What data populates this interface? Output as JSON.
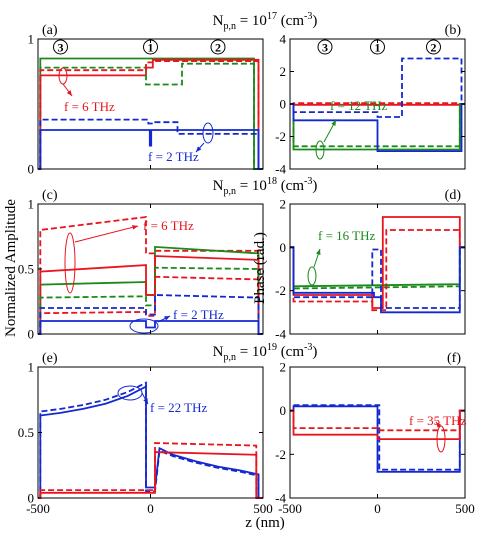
{
  "ylabels": {
    "left": "Normalized Amplitude",
    "right": "Phase (rad.)"
  },
  "xlabel": "z (nm)",
  "row_titles": [
    {
      "base": "N",
      "sub": "p,n",
      "mid": " = 10",
      "exp": "17",
      "unit": " (cm",
      "unit_exp": "-3",
      "close": ")"
    },
    {
      "base": "N",
      "sub": "p,n",
      "mid": " = 10",
      "exp": "18",
      "unit": " (cm",
      "unit_exp": "-3",
      "close": ")"
    },
    {
      "base": "N",
      "sub": "p,n",
      "mid": " = 10",
      "exp": "19",
      "unit": " (cm",
      "unit_exp": "-3",
      "close": ")"
    }
  ],
  "colors": {
    "green": "#1a8a1a",
    "red": "#e8141e",
    "blue": "#1428d2"
  },
  "chart_data": [
    {
      "id": "a",
      "label": "(a)",
      "type": "line",
      "xlim": [
        -500,
        500
      ],
      "ylim": [
        0,
        1
      ],
      "yticks": [
        "0",
        "1"
      ],
      "xticks": [],
      "region_marks": [
        {
          "x": -400,
          "text": "3"
        },
        {
          "x": 0,
          "text": "1"
        },
        {
          "x": 300,
          "text": "2"
        }
      ],
      "annotations": [
        {
          "text": "f = 6 THz",
          "color": "red"
        },
        {
          "text": "f = 2 THz",
          "color": "blue"
        }
      ],
      "series": [
        {
          "color": "green",
          "dash": false,
          "x": [
            -500,
            -490,
            -490,
            460,
            460,
            500
          ],
          "y": [
            0,
            0,
            0.85,
            0.85,
            0,
            0
          ]
        },
        {
          "color": "red",
          "dash": false,
          "x": [
            -500,
            -490,
            -490,
            -20,
            -20,
            10,
            10,
            480,
            480,
            500
          ],
          "y": [
            0,
            0,
            0.72,
            0.72,
            0.78,
            0.78,
            0.84,
            0.84,
            0,
            0
          ]
        },
        {
          "color": "green",
          "dash": true,
          "x": [
            -500,
            -490,
            -490,
            -20,
            -20,
            140,
            140,
            460,
            460,
            500
          ],
          "y": [
            0,
            0,
            0.78,
            0.78,
            0.65,
            0.65,
            0.81,
            0.81,
            0,
            0
          ]
        },
        {
          "color": "red",
          "dash": true,
          "x": [
            -500,
            -490,
            -490,
            -20,
            -20,
            10,
            10,
            480,
            480,
            500
          ],
          "y": [
            0,
            0,
            0.76,
            0.76,
            0.82,
            0.82,
            0.83,
            0.83,
            0,
            0
          ]
        },
        {
          "color": "blue",
          "dash": false,
          "x": [
            -500,
            -490,
            -490,
            -3,
            -3,
            3,
            3,
            480,
            480,
            500
          ],
          "y": [
            0,
            0,
            0.3,
            0.3,
            0.18,
            0.18,
            0.3,
            0.3,
            0,
            0
          ]
        },
        {
          "color": "blue",
          "dash": true,
          "x": [
            -500,
            -490,
            -490,
            -10,
            -10,
            10,
            10,
            120,
            120,
            480,
            480,
            500
          ],
          "y": [
            0,
            0,
            0.38,
            0.38,
            0.35,
            0.35,
            0.36,
            0.36,
            0.27,
            0.27,
            0,
            0
          ]
        }
      ]
    },
    {
      "id": "b",
      "label": "(b)",
      "type": "line",
      "xlim": [
        -500,
        500
      ],
      "ylim": [
        -4,
        4
      ],
      "yticks": [
        "-4",
        "-2",
        "0",
        "2",
        "4"
      ],
      "xticks": [],
      "region_marks": [
        {
          "x": -300,
          "text": "3"
        },
        {
          "x": 0,
          "text": "1"
        },
        {
          "x": 320,
          "text": "2"
        }
      ],
      "annotations": [
        {
          "text": "f = 12 THz",
          "color": "green"
        }
      ],
      "series": [
        {
          "color": "red",
          "dash": false,
          "x": [
            -500,
            -480,
            -480,
            470,
            470,
            500
          ],
          "y": [
            0,
            0,
            -0.05,
            -0.05,
            0,
            0
          ]
        },
        {
          "color": "red",
          "dash": true,
          "x": [
            -500,
            -480,
            -480,
            470,
            470,
            500
          ],
          "y": [
            0,
            0,
            0.05,
            0.05,
            0,
            0
          ]
        },
        {
          "color": "green",
          "dash": false,
          "x": [
            -500,
            -480,
            -480,
            470,
            470,
            500
          ],
          "y": [
            0,
            0,
            -2.8,
            -2.8,
            0,
            0
          ]
        },
        {
          "color": "green",
          "dash": true,
          "x": [
            -500,
            -480,
            -480,
            470,
            470,
            500
          ],
          "y": [
            0,
            0,
            -2.6,
            -2.6,
            0,
            0
          ]
        },
        {
          "color": "blue",
          "dash": false,
          "x": [
            -500,
            -480,
            -480,
            0,
            0,
            480,
            480,
            500
          ],
          "y": [
            0,
            0,
            -1.0,
            -1.0,
            -2.9,
            -2.9,
            0,
            0
          ]
        },
        {
          "color": "blue",
          "dash": true,
          "x": [
            -500,
            -480,
            -480,
            0,
            0,
            140,
            140,
            480,
            480,
            500
          ],
          "y": [
            0,
            0,
            -0.5,
            -0.5,
            -0.8,
            -0.8,
            2.8,
            2.8,
            0,
            0
          ]
        }
      ]
    },
    {
      "id": "c",
      "label": "(c)",
      "type": "line",
      "xlim": [
        -500,
        500
      ],
      "ylim": [
        0,
        1
      ],
      "yticks": [
        "0",
        "0.5",
        "1"
      ],
      "xticks": [],
      "region_marks": [],
      "annotations": [
        {
          "text": "f = 6 THz",
          "color": "red"
        },
        {
          "text": "f = 2 THz",
          "color": "blue"
        }
      ],
      "series": [
        {
          "color": "red",
          "dash": true,
          "x": [
            -500,
            -490,
            -490,
            -20,
            -20,
            20,
            20,
            480,
            480,
            500
          ],
          "y": [
            0,
            0,
            0.8,
            0.9,
            0.62,
            0.62,
            0.64,
            0.64,
            0,
            0
          ]
        },
        {
          "color": "green",
          "dash": false,
          "x": [
            -500,
            -490,
            -490,
            -20,
            -20,
            20,
            20,
            480,
            480,
            500
          ],
          "y": [
            0,
            0,
            0.38,
            0.4,
            0.3,
            0.3,
            0.67,
            0.62,
            0,
            0
          ]
        },
        {
          "color": "red",
          "dash": false,
          "x": [
            -500,
            -490,
            -490,
            -20,
            -20,
            20,
            20,
            480,
            480,
            500
          ],
          "y": [
            0,
            0,
            0.48,
            0.53,
            0.3,
            0.3,
            0.6,
            0.57,
            0,
            0
          ]
        },
        {
          "color": "green",
          "dash": true,
          "x": [
            -500,
            -490,
            -490,
            -20,
            -20,
            20,
            20,
            480,
            480,
            500
          ],
          "y": [
            0,
            0,
            0.28,
            0.29,
            0.22,
            0.22,
            0.51,
            0.5,
            0,
            0
          ]
        },
        {
          "color": "red",
          "dash": true,
          "x": [
            -500,
            -490,
            -490,
            -20,
            -20,
            20,
            20,
            480,
            480,
            500
          ],
          "y": [
            0,
            0,
            0.16,
            0.17,
            0.14,
            0.14,
            0.44,
            0.42,
            0,
            0
          ]
        },
        {
          "color": "blue",
          "dash": true,
          "x": [
            -500,
            -490,
            -490,
            -20,
            -20,
            20,
            20,
            480,
            480,
            500
          ],
          "y": [
            0,
            0,
            0.2,
            0.2,
            0.15,
            0.15,
            0.3,
            0.28,
            0,
            0
          ]
        },
        {
          "color": "blue",
          "dash": false,
          "x": [
            -500,
            -490,
            -490,
            -20,
            -20,
            20,
            20,
            480,
            480,
            500
          ],
          "y": [
            0,
            0,
            0.1,
            0.1,
            0.05,
            0.05,
            0.1,
            0.1,
            0,
            0
          ]
        }
      ]
    },
    {
      "id": "d",
      "label": "(d)",
      "type": "line",
      "xlim": [
        -500,
        500
      ],
      "ylim": [
        -4,
        2
      ],
      "yticks": [
        "-4",
        "-2",
        "0",
        "2"
      ],
      "xticks": [],
      "region_marks": [],
      "annotations": [
        {
          "text": "f = 16 THz",
          "color": "green"
        }
      ],
      "series": [
        {
          "color": "green",
          "dash": false,
          "x": [
            -500,
            -480,
            -480,
            470,
            470,
            500
          ],
          "y": [
            0,
            0,
            -1.8,
            -1.7,
            0,
            0
          ]
        },
        {
          "color": "green",
          "dash": true,
          "x": [
            -500,
            -480,
            -480,
            470,
            470,
            500
          ],
          "y": [
            0,
            0,
            -1.9,
            -1.8,
            0,
            0
          ]
        },
        {
          "color": "red",
          "dash": false,
          "x": [
            -500,
            -480,
            -480,
            -30,
            -30,
            30,
            30,
            470,
            470,
            500
          ],
          "y": [
            0,
            0,
            -2.2,
            -2.2,
            -2.8,
            -2.8,
            1.4,
            1.4,
            0,
            0
          ]
        },
        {
          "color": "red",
          "dash": true,
          "x": [
            -500,
            -480,
            -480,
            -30,
            -30,
            50,
            50,
            470,
            470,
            500
          ],
          "y": [
            0,
            0,
            -2.5,
            -2.5,
            -2.9,
            -2.9,
            0.8,
            0.8,
            0,
            0
          ]
        },
        {
          "color": "blue",
          "dash": false,
          "x": [
            -500,
            -480,
            -480,
            -20,
            -20,
            20,
            20,
            470,
            470,
            500
          ],
          "y": [
            0,
            0,
            -2.1,
            -2.1,
            -2.3,
            -2.3,
            -3.0,
            -3.0,
            0,
            0
          ]
        },
        {
          "color": "blue",
          "dash": true,
          "x": [
            -500,
            -480,
            -480,
            -30,
            -30,
            20,
            20,
            470,
            470,
            500
          ],
          "y": [
            0,
            0,
            -2.3,
            -2.3,
            -0.1,
            -0.1,
            -2.8,
            -2.8,
            0,
            0
          ]
        }
      ]
    },
    {
      "id": "e",
      "label": "(e)",
      "type": "line",
      "xlim": [
        -500,
        500
      ],
      "ylim": [
        0,
        1
      ],
      "yticks": [
        "0",
        "0.5",
        "1"
      ],
      "xticks": [
        "-500",
        "0",
        "500"
      ],
      "region_marks": [],
      "annotations": [
        {
          "text": "f = 22 THz",
          "color": "blue"
        }
      ],
      "series": [
        {
          "color": "blue",
          "dash": false,
          "x": [
            -500,
            -490,
            -490,
            -400,
            -300,
            -200,
            -100,
            -20,
            -20,
            20,
            40,
            100,
            200,
            300,
            400,
            480,
            480,
            500
          ],
          "y": [
            0,
            0,
            0.63,
            0.65,
            0.68,
            0.72,
            0.78,
            0.85,
            0.08,
            0.08,
            0.38,
            0.33,
            0.28,
            0.24,
            0.21,
            0.18,
            0,
            0
          ]
        },
        {
          "color": "blue",
          "dash": true,
          "x": [
            -500,
            -490,
            -490,
            -400,
            -300,
            -200,
            -100,
            -20,
            -20,
            20,
            40,
            100,
            200,
            300,
            400,
            480,
            480,
            500
          ],
          "y": [
            0,
            0,
            0.66,
            0.68,
            0.71,
            0.75,
            0.81,
            0.88,
            0.05,
            0.05,
            0.36,
            0.32,
            0.27,
            0.23,
            0.2,
            0.17,
            0,
            0
          ]
        },
        {
          "color": "red",
          "dash": false,
          "x": [
            -500,
            -490,
            -490,
            -20,
            -20,
            20,
            20,
            470,
            470,
            500
          ],
          "y": [
            0,
            0,
            0.04,
            0.04,
            0.04,
            0.04,
            0.35,
            0.33,
            0,
            0
          ]
        },
        {
          "color": "red",
          "dash": true,
          "x": [
            -500,
            -490,
            -490,
            -20,
            -20,
            20,
            20,
            470,
            470,
            500
          ],
          "y": [
            0,
            0,
            0.06,
            0.06,
            0.06,
            0.06,
            0.42,
            0.4,
            0,
            0
          ]
        }
      ]
    },
    {
      "id": "f",
      "label": "(f)",
      "type": "line",
      "xlim": [
        -500,
        500
      ],
      "ylim": [
        -4,
        2
      ],
      "yticks": [
        "-4",
        "-2",
        "0",
        "2"
      ],
      "xticks": [
        "-500",
        "0",
        "500"
      ],
      "region_marks": [],
      "annotations": [
        {
          "text": "f = 35 THz",
          "color": "red"
        }
      ],
      "series": [
        {
          "color": "blue",
          "dash": false,
          "x": [
            -500,
            -480,
            -480,
            0,
            0,
            470,
            470,
            500
          ],
          "y": [
            0,
            0,
            0.2,
            0.2,
            -2.8,
            -2.8,
            0,
            0
          ]
        },
        {
          "color": "blue",
          "dash": true,
          "x": [
            -500,
            -480,
            -480,
            10,
            10,
            470,
            470,
            500
          ],
          "y": [
            0,
            0,
            0.25,
            0.25,
            -2.7,
            -2.7,
            0,
            0
          ]
        },
        {
          "color": "red",
          "dash": false,
          "x": [
            -500,
            -480,
            -480,
            0,
            0,
            470,
            470,
            500
          ],
          "y": [
            0,
            0,
            -1.1,
            -1.1,
            -1.3,
            -1.3,
            0,
            0
          ]
        },
        {
          "color": "red",
          "dash": true,
          "x": [
            -500,
            -480,
            -480,
            0,
            0,
            470,
            470,
            500
          ],
          "y": [
            0,
            0,
            -0.8,
            -0.8,
            -0.9,
            -0.9,
            0,
            0
          ]
        }
      ]
    }
  ]
}
